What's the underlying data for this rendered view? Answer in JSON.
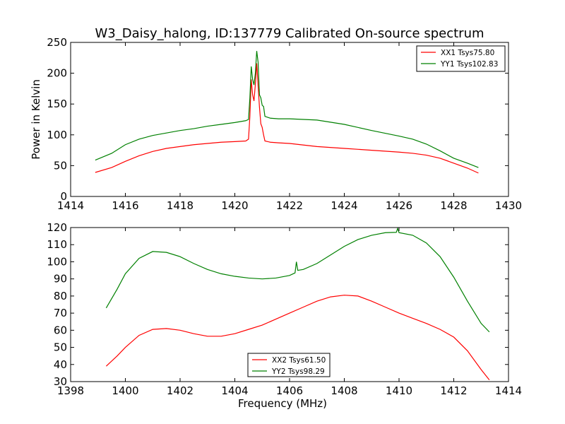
{
  "title": "W3_Daisy_halong, ID:137779 Calibrated On-source spectrum",
  "colors": {
    "red": "#ff0000",
    "green": "#008000",
    "axes": "#000000",
    "background": "#ffffff"
  },
  "chart_data": [
    {
      "type": "line",
      "ylabel": "Power in Kelvin",
      "xlabel": "",
      "xlim": [
        1414,
        1430
      ],
      "ylim": [
        0,
        250
      ],
      "xticks": [
        1414,
        1416,
        1418,
        1420,
        1422,
        1424,
        1426,
        1428,
        1430
      ],
      "yticks": [
        0,
        50,
        100,
        150,
        200,
        250
      ],
      "grid": false,
      "legend_position": "top-right",
      "series": [
        {
          "name": "XX1 Tsys75.80",
          "color": "#ff0000",
          "points": [
            [
              1414.9,
              39
            ],
            [
              1415.5,
              47
            ],
            [
              1416,
              57
            ],
            [
              1416.5,
              66
            ],
            [
              1417,
              73
            ],
            [
              1417.5,
              78
            ],
            [
              1418,
              81
            ],
            [
              1418.5,
              84
            ],
            [
              1419,
              86
            ],
            [
              1419.5,
              88
            ],
            [
              1420,
              89
            ],
            [
              1420.4,
              90
            ],
            [
              1420.5,
              93
            ],
            [
              1420.55,
              130
            ],
            [
              1420.6,
              190
            ],
            [
              1420.65,
              165
            ],
            [
              1420.7,
              155
            ],
            [
              1420.75,
              182
            ],
            [
              1420.8,
              216
            ],
            [
              1420.85,
              180
            ],
            [
              1420.9,
              145
            ],
            [
              1420.95,
              118
            ],
            [
              1421.0,
              112
            ],
            [
              1421.05,
              100
            ],
            [
              1421.1,
              90
            ],
            [
              1421.3,
              88
            ],
            [
              1421.6,
              87
            ],
            [
              1422,
              86
            ],
            [
              1423,
              81
            ],
            [
              1424,
              78
            ],
            [
              1425,
              75
            ],
            [
              1426,
              72
            ],
            [
              1426.5,
              70
            ],
            [
              1427,
              67
            ],
            [
              1427.5,
              62
            ],
            [
              1428,
              54
            ],
            [
              1428.5,
              46
            ],
            [
              1428.9,
              38
            ]
          ]
        },
        {
          "name": "YY1 Tsys102.83",
          "color": "#008000",
          "points": [
            [
              1414.9,
              59
            ],
            [
              1415.5,
              70
            ],
            [
              1416,
              84
            ],
            [
              1416.5,
              93
            ],
            [
              1417,
              99
            ],
            [
              1417.5,
              103
            ],
            [
              1418,
              107
            ],
            [
              1418.5,
              110
            ],
            [
              1419,
              114
            ],
            [
              1419.5,
              117
            ],
            [
              1420,
              120
            ],
            [
              1420.4,
              123
            ],
            [
              1420.5,
              125
            ],
            [
              1420.55,
              160
            ],
            [
              1420.6,
              211
            ],
            [
              1420.65,
              190
            ],
            [
              1420.7,
              181
            ],
            [
              1420.75,
              200
            ],
            [
              1420.8,
              236
            ],
            [
              1420.85,
              218
            ],
            [
              1420.9,
              165
            ],
            [
              1420.95,
              160
            ],
            [
              1421.0,
              148
            ],
            [
              1421.05,
              146
            ],
            [
              1421.1,
              130
            ],
            [
              1421.3,
              127
            ],
            [
              1421.6,
              126
            ],
            [
              1422,
              126
            ],
            [
              1423,
              124
            ],
            [
              1424,
              117
            ],
            [
              1425,
              107
            ],
            [
              1426,
              98
            ],
            [
              1426.5,
              93
            ],
            [
              1427,
              85
            ],
            [
              1427.5,
              74
            ],
            [
              1428,
              62
            ],
            [
              1428.5,
              54
            ],
            [
              1428.9,
              47
            ]
          ]
        }
      ]
    },
    {
      "type": "line",
      "xlabel": "Frequency (MHz)",
      "ylabel": "",
      "xlim": [
        1398,
        1414
      ],
      "ylim": [
        30,
        120
      ],
      "xticks": [
        1398,
        1400,
        1402,
        1404,
        1406,
        1408,
        1410,
        1412,
        1414
      ],
      "yticks": [
        30,
        40,
        50,
        60,
        70,
        80,
        90,
        100,
        110,
        120
      ],
      "grid": false,
      "legend_position": "bottom-center",
      "series": [
        {
          "name": "XX2 Tsys61.50",
          "color": "#ff0000",
          "points": [
            [
              1399.3,
              39
            ],
            [
              1399.7,
              45
            ],
            [
              1400,
              50
            ],
            [
              1400.5,
              57
            ],
            [
              1401,
              60.5
            ],
            [
              1401.5,
              61
            ],
            [
              1402,
              60
            ],
            [
              1402.5,
              58
            ],
            [
              1403,
              56.5
            ],
            [
              1403.5,
              56.5
            ],
            [
              1404,
              58
            ],
            [
              1404.5,
              60.5
            ],
            [
              1405,
              63
            ],
            [
              1405.5,
              66.5
            ],
            [
              1406,
              70
            ],
            [
              1406.5,
              73.5
            ],
            [
              1407,
              77
            ],
            [
              1407.5,
              79.5
            ],
            [
              1408,
              80.5
            ],
            [
              1408.5,
              80
            ],
            [
              1409,
              77
            ],
            [
              1409.5,
              73.5
            ],
            [
              1410,
              70
            ],
            [
              1410.5,
              67
            ],
            [
              1411,
              64
            ],
            [
              1411.5,
              60.5
            ],
            [
              1412,
              56
            ],
            [
              1412.5,
              48
            ],
            [
              1413,
              37
            ],
            [
              1413.3,
              31
            ]
          ]
        },
        {
          "name": "YY2 Tsys98.29",
          "color": "#008000",
          "points": [
            [
              1399.3,
              73
            ],
            [
              1399.7,
              84
            ],
            [
              1400,
              93
            ],
            [
              1400.5,
              102
            ],
            [
              1401,
              106
            ],
            [
              1401.5,
              105.5
            ],
            [
              1402,
              103
            ],
            [
              1402.5,
              99
            ],
            [
              1403,
              95.5
            ],
            [
              1403.5,
              93
            ],
            [
              1404,
              91.5
            ],
            [
              1404.5,
              90.5
            ],
            [
              1405,
              90
            ],
            [
              1405.5,
              90.5
            ],
            [
              1406,
              92
            ],
            [
              1406.2,
              93.5
            ],
            [
              1406.25,
              100
            ],
            [
              1406.3,
              95
            ],
            [
              1406.5,
              95.5
            ],
            [
              1407,
              99
            ],
            [
              1407.5,
              104
            ],
            [
              1408,
              109
            ],
            [
              1408.5,
              113
            ],
            [
              1409,
              115.5
            ],
            [
              1409.5,
              117
            ],
            [
              1409.9,
              117.2
            ],
            [
              1409.95,
              119.5
            ],
            [
              1410,
              117
            ],
            [
              1410.5,
              115.5
            ],
            [
              1411,
              111
            ],
            [
              1411.5,
              103
            ],
            [
              1412,
              91
            ],
            [
              1412.5,
              77
            ],
            [
              1413,
              64
            ],
            [
              1413.3,
              59
            ]
          ]
        }
      ]
    }
  ]
}
